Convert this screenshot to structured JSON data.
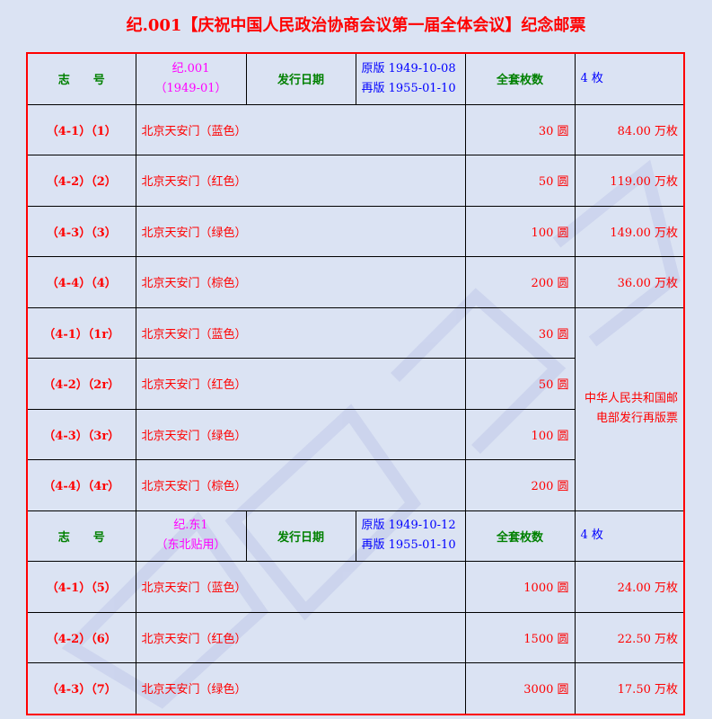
{
  "title": "纪.001【庆祝中国人民政治协商会议第一届全体会议】纪念邮票",
  "colors": {
    "background": "#dbe3f3",
    "accent": "#ff0000",
    "header_label": "#008000",
    "issue_code": "#ff00ff",
    "dates": "#0000ff"
  },
  "labels": {
    "zhihao": "志　　号",
    "issue_date": "发行日期",
    "set_count": "全套枚数"
  },
  "sections": [
    {
      "code": "纪.001",
      "code_sub": "（1949-01）",
      "date_orig": "原版 1949-10-08",
      "date_re": "再版 1955-01-10",
      "set_count": "4 枚",
      "rows": [
        {
          "id": "（4-1）（1）",
          "name": "北京天安门（蓝色）",
          "value": "30 圆",
          "qty": "84.00 万枚"
        },
        {
          "id": "（4-2）（2）",
          "name": "北京天安门（红色）",
          "value": "50 圆",
          "qty": "119.00 万枚"
        },
        {
          "id": "（4-3）（3）",
          "name": "北京天安门（绿色）",
          "value": "100 圆",
          "qty": "149.00 万枚"
        },
        {
          "id": "（4-4）（4）",
          "name": "北京天安门（棕色）",
          "value": "200 圆",
          "qty": "36.00 万枚"
        },
        {
          "id": "（4-1）（1r）",
          "name": "北京天安门（蓝色）",
          "value": "30 圆"
        },
        {
          "id": "（4-2）（2r）",
          "name": "北京天安门（红色）",
          "value": "50 圆"
        },
        {
          "id": "（4-3）（3r）",
          "name": "北京天安门（绿色）",
          "value": "100 圆"
        },
        {
          "id": "（4-4）（4r）",
          "name": "北京天安门（棕色）",
          "value": "200 圆"
        }
      ],
      "reprint_note": "中华人民共和国邮电部发行再版票"
    },
    {
      "code": "纪.东1",
      "code_sub": "（东北贴用）",
      "date_orig": "原版 1949-10-12",
      "date_re": "再版 1955-01-10",
      "set_count": "4 枚",
      "rows": [
        {
          "id": "（4-1）（5）",
          "name": "北京天安门（蓝色）",
          "value": "1000 圆",
          "qty": "24.00 万枚"
        },
        {
          "id": "（4-2）（6）",
          "name": "北京天安门（红色）",
          "value": "1500 圆",
          "qty": "22.50 万枚"
        },
        {
          "id": "（4-3）（7）",
          "name": "北京天安门（绿色）",
          "value": "3000 圆",
          "qty": "17.50 万枚"
        }
      ]
    }
  ]
}
